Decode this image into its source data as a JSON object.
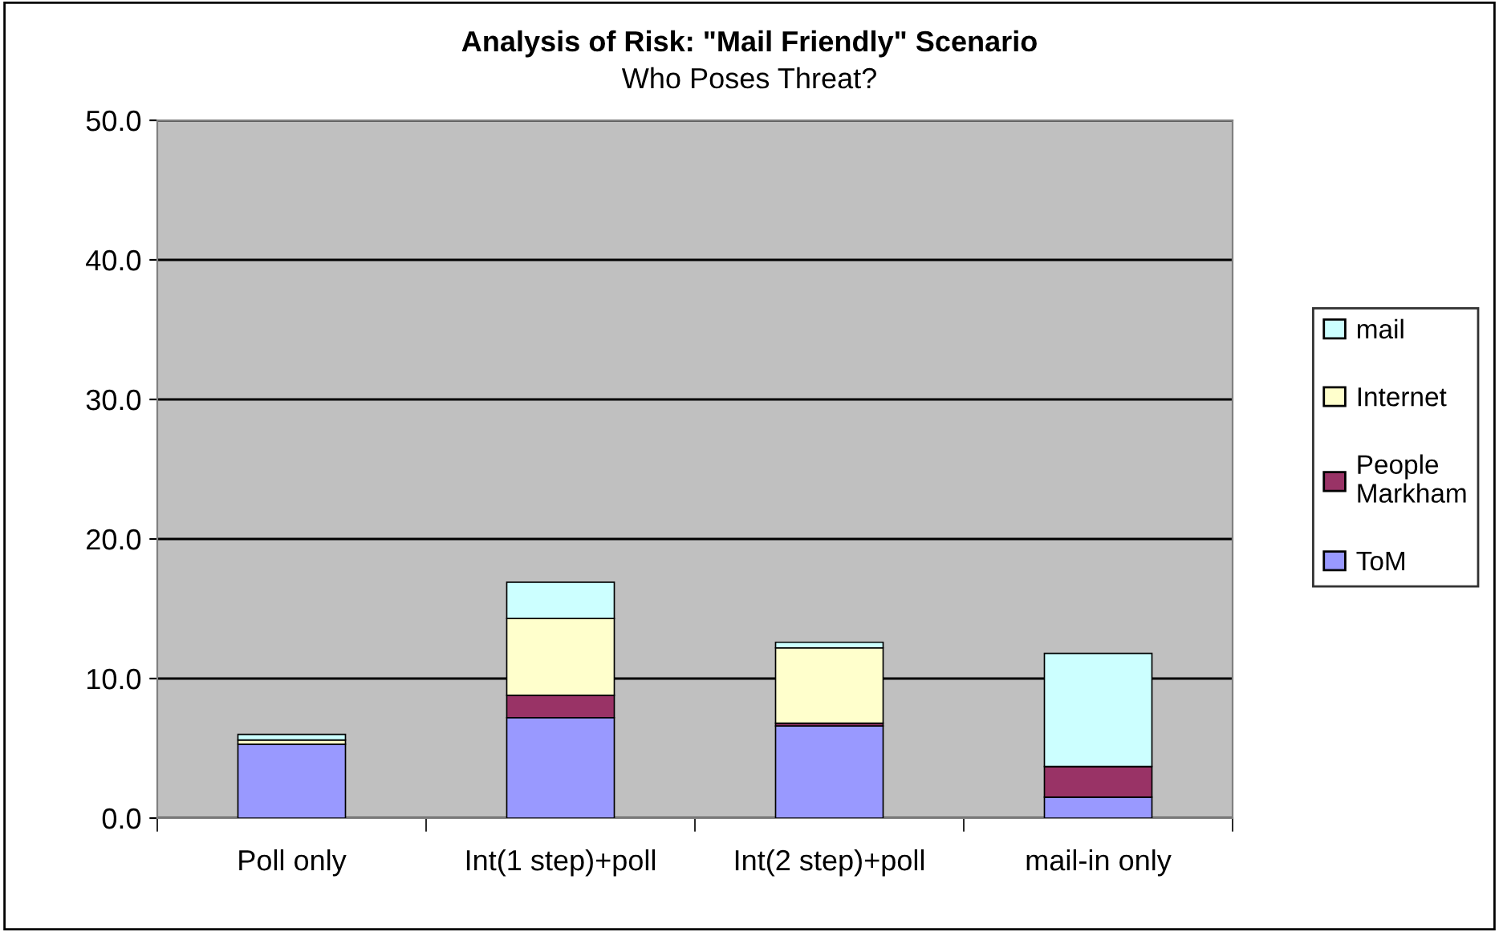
{
  "chart_data": {
    "type": "bar",
    "title": "Analysis of Risk: \"Mail Friendly\" Scenario",
    "subtitle": "Who Poses Threat?",
    "categories": [
      "Poll only",
      "Int(1 step)+poll",
      "Int(2 step)+poll",
      "mail-in only"
    ],
    "stacked": true,
    "series": [
      {
        "name": "ToM",
        "color": "#9999ff",
        "values": [
          5.3,
          7.2,
          6.6,
          1.5
        ]
      },
      {
        "name": "People Markham",
        "color": "#993366",
        "values": [
          0,
          1.6,
          0.2,
          2.2
        ]
      },
      {
        "name": "Internet",
        "color": "#ffffcc",
        "values": [
          0.3,
          5.5,
          5.4,
          0
        ]
      },
      {
        "name": "mail",
        "color": "#ccffff",
        "values": [
          0.4,
          2.6,
          0.4,
          8.1
        ]
      }
    ],
    "ylim": [
      0,
      50
    ],
    "yticks": [
      {
        "value": 0,
        "label": "0.0"
      },
      {
        "value": 10,
        "label": "10.0"
      },
      {
        "value": 20,
        "label": "20.0"
      },
      {
        "value": 30,
        "label": "30.0"
      },
      {
        "value": 40,
        "label": "40.0"
      },
      {
        "value": 50,
        "label": "50.0"
      }
    ],
    "grid": "y",
    "legend": "right"
  }
}
